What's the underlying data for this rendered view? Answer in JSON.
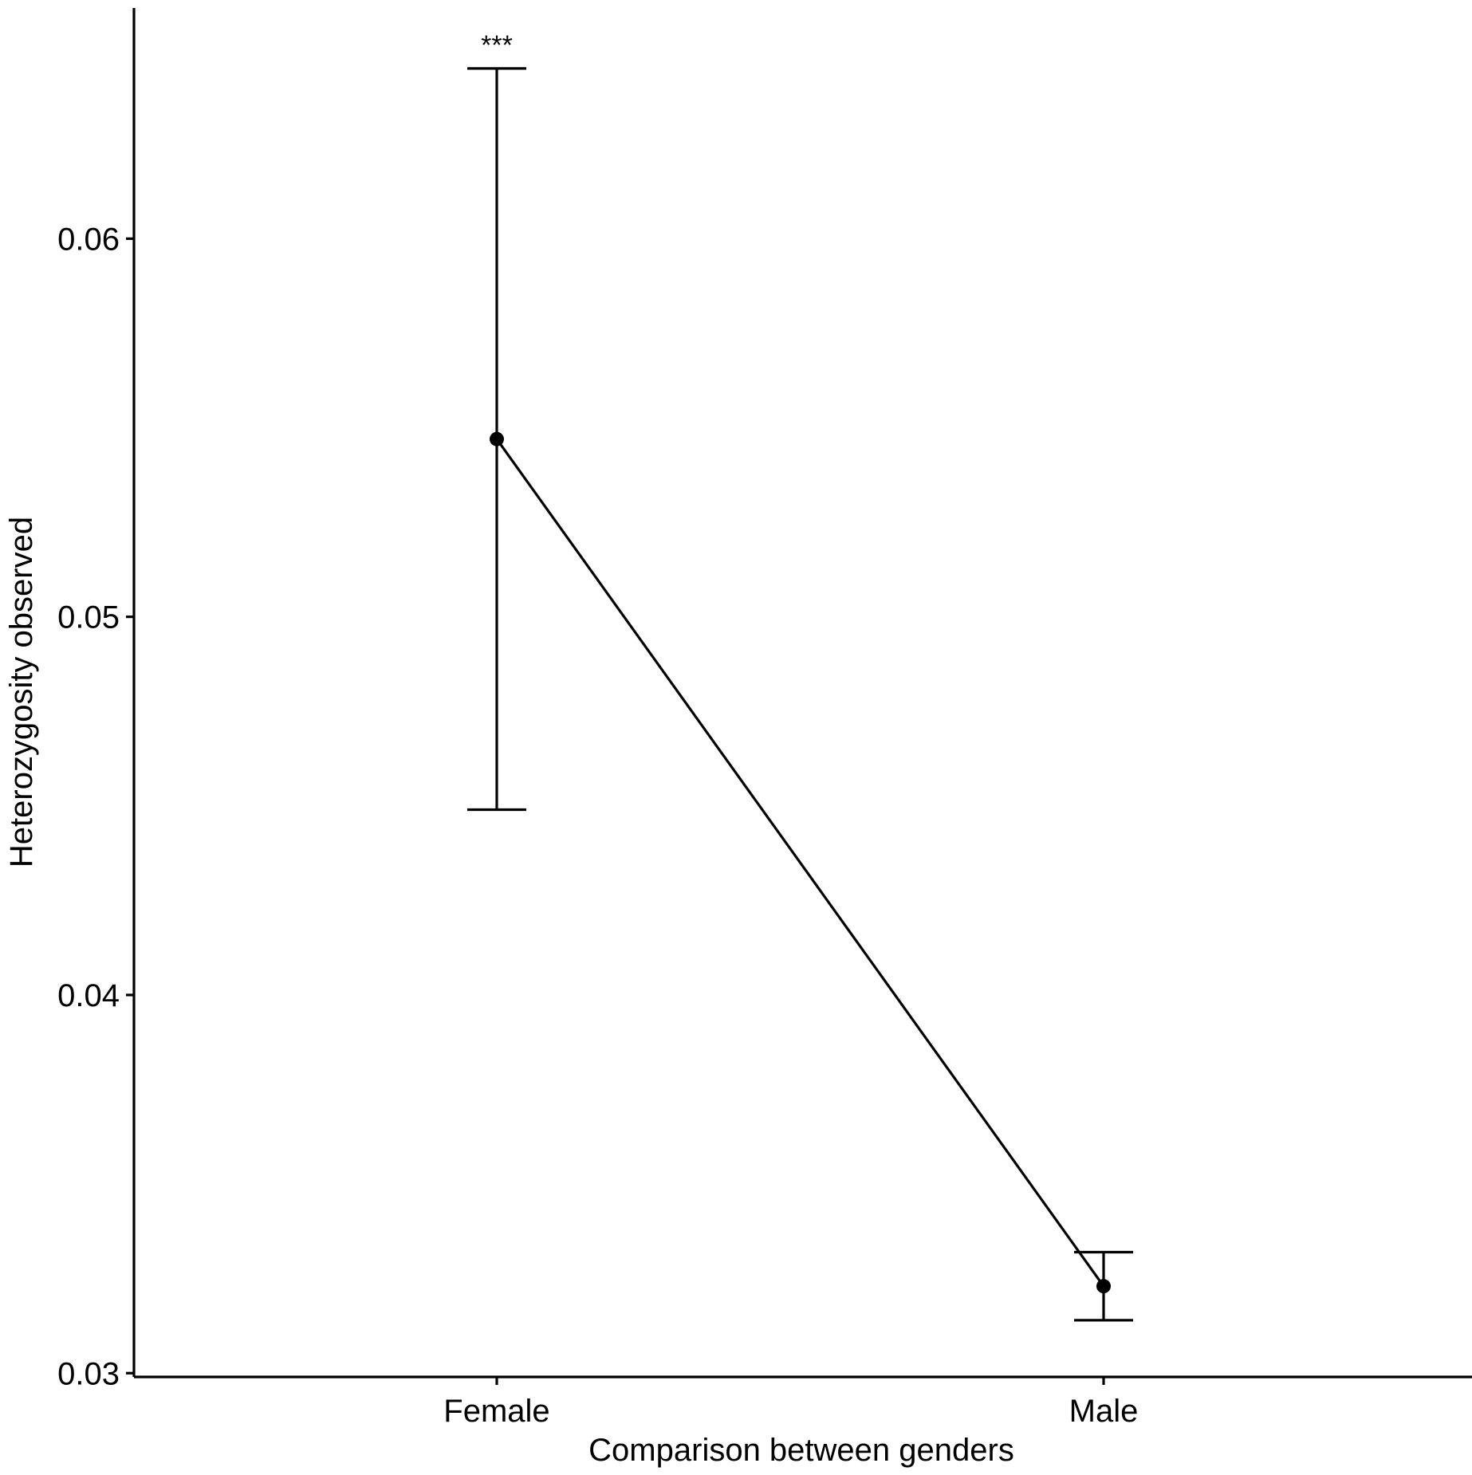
{
  "chart_data": {
    "type": "line",
    "xlabel": "Comparison between genders",
    "ylabel": "Heterozygosity observed",
    "categories": [
      "Female",
      "Male"
    ],
    "series": [
      {
        "values": [
          0.0547,
          0.0323
        ],
        "error_lower": [
          0.0449,
          0.0314
        ],
        "error_upper": [
          0.0645,
          0.0332
        ]
      }
    ],
    "annotations": [
      {
        "category": "Female",
        "text": "***"
      }
    ],
    "ylim": [
      0.0299,
      0.0661
    ],
    "yticks": [
      0.03,
      0.04,
      0.05,
      0.06
    ],
    "ytick_labels": [
      "0.03",
      "0.04",
      "0.05",
      "0.06"
    ],
    "grid": false,
    "legend": "none",
    "colors": {
      "line": "#000000",
      "point": "#000000",
      "axis": "#000000"
    }
  }
}
